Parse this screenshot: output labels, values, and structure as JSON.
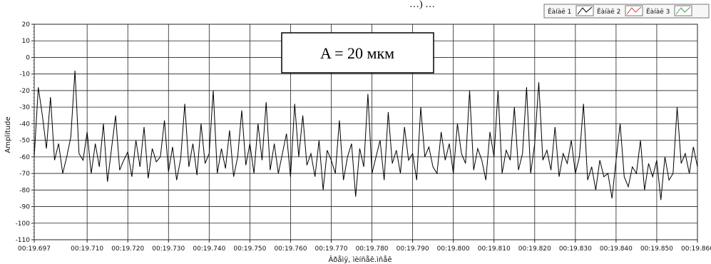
{
  "header_fragment": "…) …",
  "chart_data": {
    "type": "line",
    "title": "",
    "xlabel": "Âðåìÿ, ìèíñåê.ìñåê",
    "ylabel": "Amplitude",
    "annotation": "A = 20 мкм",
    "x_start": "00:19.697",
    "x_end": "00:19.860",
    "xlim_seconds": [
      19.697,
      19.86
    ],
    "ylim": [
      -110,
      20
    ],
    "y_ticks": [
      20,
      10,
      0,
      -10,
      -20,
      -30,
      -40,
      -50,
      -60,
      -70,
      -80,
      -90,
      -100,
      -110
    ],
    "x_ticks": [
      "00:19.697",
      "00:19.710",
      "00:19.720",
      "00:19.730",
      "00:19.740",
      "00:19.750",
      "00:19.760",
      "00:19.770",
      "00:19.780",
      "00:19.790",
      "00:19.800",
      "00:19.810",
      "00:19.820",
      "00:19.830",
      "00:19.840",
      "00:19.850",
      "00:19.860"
    ],
    "grid": true,
    "legend_position": "top-right",
    "legend": [
      {
        "name": "Êàíàë 1",
        "color": "#000000"
      },
      {
        "name": "Êàíàë 2",
        "color": "#e53935"
      },
      {
        "name": "Êàíàë 3",
        "color": "#43a047"
      }
    ],
    "series": [
      {
        "name": "Êàíàë 1",
        "color": "#000000",
        "x": [
          19.697,
          19.698,
          19.699,
          19.7,
          19.701,
          19.702,
          19.703,
          19.704,
          19.705,
          19.706,
          19.707,
          19.708,
          19.709,
          19.71,
          19.711,
          19.712,
          19.713,
          19.714,
          19.715,
          19.716,
          19.717,
          19.718,
          19.719,
          19.72,
          19.721,
          19.722,
          19.723,
          19.724,
          19.725,
          19.726,
          19.727,
          19.728,
          19.729,
          19.73,
          19.731,
          19.732,
          19.733,
          19.734,
          19.735,
          19.736,
          19.737,
          19.738,
          19.739,
          19.74,
          19.741,
          19.742,
          19.743,
          19.744,
          19.745,
          19.746,
          19.747,
          19.748,
          19.749,
          19.75,
          19.751,
          19.752,
          19.753,
          19.754,
          19.755,
          19.756,
          19.757,
          19.758,
          19.759,
          19.76,
          19.761,
          19.762,
          19.763,
          19.764,
          19.765,
          19.766,
          19.767,
          19.768,
          19.769,
          19.77,
          19.771,
          19.772,
          19.773,
          19.774,
          19.775,
          19.776,
          19.777,
          19.778,
          19.779,
          19.78,
          19.781,
          19.782,
          19.783,
          19.784,
          19.785,
          19.786,
          19.787,
          19.788,
          19.789,
          19.79,
          19.791,
          19.792,
          19.793,
          19.794,
          19.795,
          19.796,
          19.797,
          19.798,
          19.799,
          19.8,
          19.801,
          19.802,
          19.803,
          19.804,
          19.805,
          19.806,
          19.807,
          19.808,
          19.809,
          19.81,
          19.811,
          19.812,
          19.813,
          19.814,
          19.815,
          19.816,
          19.817,
          19.818,
          19.819,
          19.82,
          19.821,
          19.822,
          19.823,
          19.824,
          19.825,
          19.826,
          19.827,
          19.828,
          19.829,
          19.83,
          19.831,
          19.832,
          19.833,
          19.834,
          19.835,
          19.836,
          19.837,
          19.838,
          19.839,
          19.84,
          19.841,
          19.842,
          19.843,
          19.844,
          19.845,
          19.846,
          19.847,
          19.848,
          19.849,
          19.85,
          19.851,
          19.852,
          19.853,
          19.854,
          19.855,
          19.856,
          19.857,
          19.858,
          19.859,
          19.86
        ],
        "y": [
          -60,
          -18,
          -35,
          -55,
          -24,
          -62,
          -52,
          -70,
          -60,
          -48,
          -8,
          -58,
          -62,
          -45,
          -70,
          -52,
          -66,
          -40,
          -75,
          -55,
          -35,
          -68,
          -62,
          -57,
          -72,
          -50,
          -66,
          -42,
          -73,
          -55,
          -63,
          -60,
          -38,
          -69,
          -54,
          -74,
          -61,
          -28,
          -66,
          -52,
          -71,
          -40,
          -64,
          -58,
          -20,
          -70,
          -55,
          -67,
          -44,
          -72,
          -60,
          -32,
          -65,
          -52,
          -70,
          -40,
          -62,
          -27,
          -68,
          -52,
          -70,
          -58,
          -46,
          -72,
          -28,
          -60,
          -35,
          -65,
          -58,
          -72,
          -50,
          -80,
          -56,
          -62,
          -70,
          -38,
          -74,
          -60,
          -52,
          -84,
          -55,
          -66,
          -22,
          -70,
          -60,
          -50,
          -74,
          -33,
          -64,
          -56,
          -70,
          -42,
          -62,
          -58,
          -74,
          -30,
          -60,
          -54,
          -66,
          -70,
          -45,
          -62,
          -52,
          -70,
          -40,
          -58,
          -64,
          -20,
          -68,
          -55,
          -62,
          -74,
          -45,
          -60,
          -20,
          -70,
          -56,
          -62,
          -30,
          -68,
          -58,
          -18,
          -70,
          -52,
          -15,
          -62,
          -56,
          -68,
          -42,
          -72,
          -58,
          -64,
          -50,
          -70,
          -60,
          -28,
          -74,
          -66,
          -80,
          -62,
          -72,
          -70,
          -85,
          -62,
          -40,
          -72,
          -78,
          -66,
          -70,
          -50,
          -80,
          -64,
          -72,
          -62,
          -86,
          -60,
          -74,
          -70,
          -30,
          -64,
          -58,
          -70,
          -54,
          -66
        ]
      }
    ]
  }
}
